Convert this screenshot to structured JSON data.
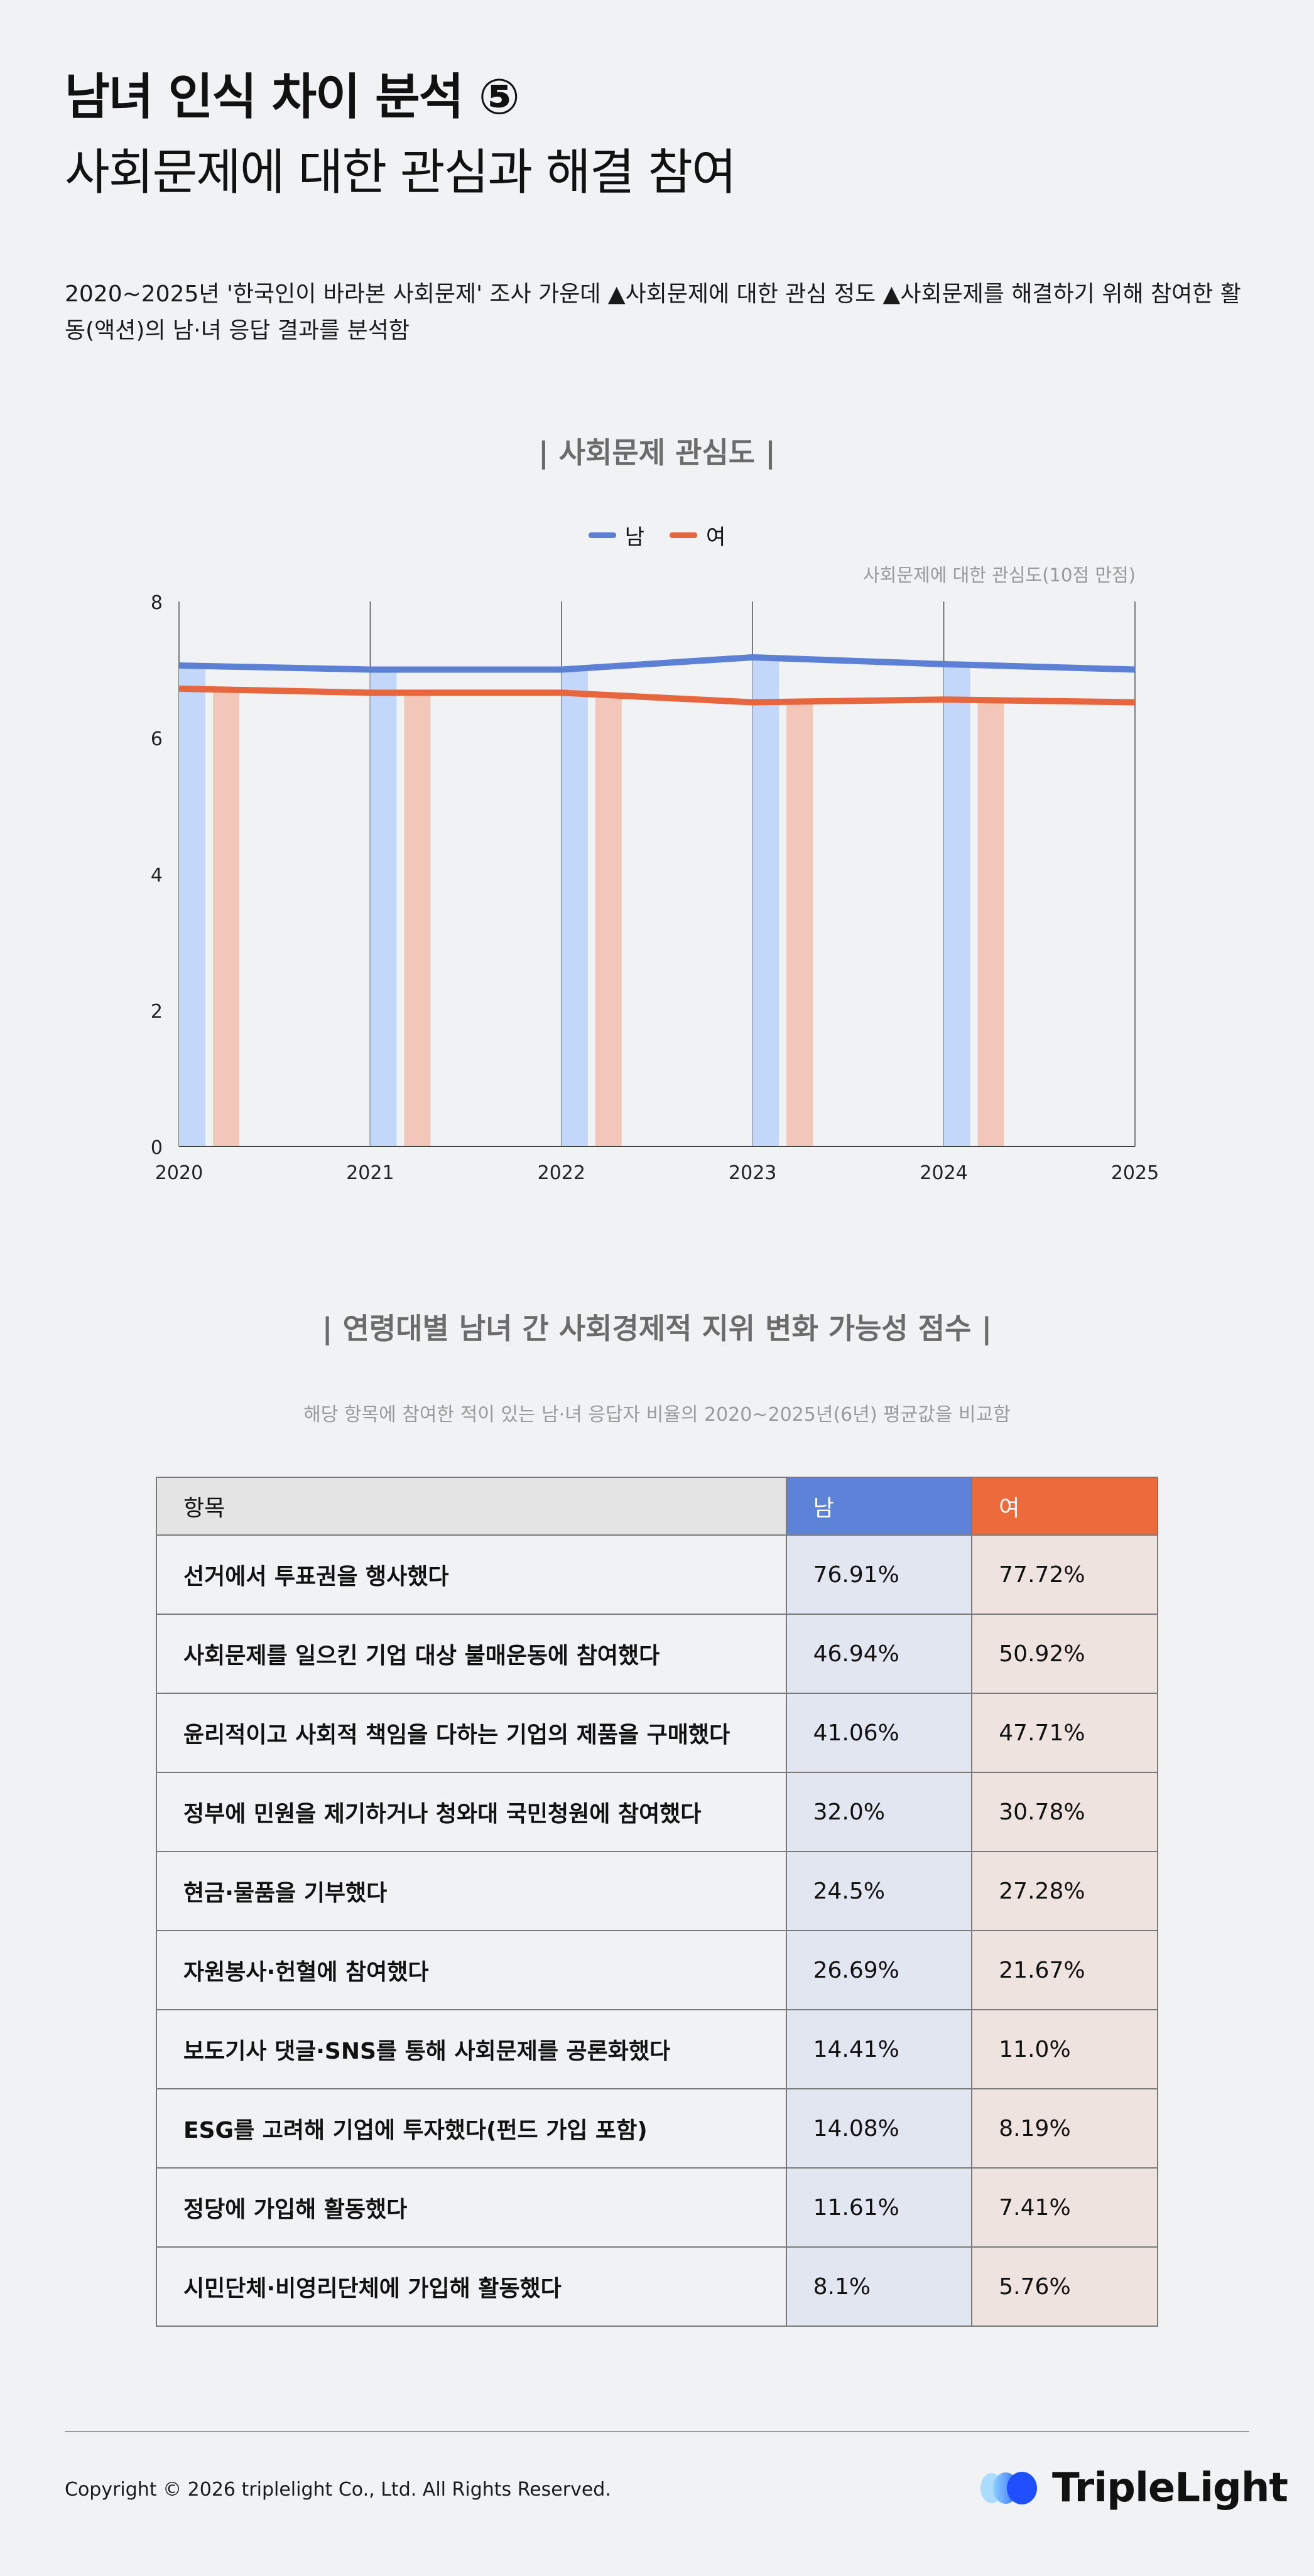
{
  "header": {
    "title_line1": "남녀 인식 차이 분석 ⑤",
    "title_line2": "사회문제에 대한 관심과 해결 참여",
    "description": "2020~2025년 '한국인이 바라본 사회문제' 조사 가운데 ▲사회문제에 대한 관심 정도 ▲사회문제를 해결하기 위해 참여한 활동(액션)의 남·녀 응답 결과를 분석함"
  },
  "chart_section": {
    "title": "| 사회문제 관심도 |",
    "note": "사회문제에 대한 관심도(10점 만점)"
  },
  "chart_data": {
    "type": "bar+line",
    "title": "| 사회문제 관심도 |",
    "categories": [
      "2020",
      "2021",
      "2022",
      "2023",
      "2024"
    ],
    "x_ticks": [
      "2020",
      "2021",
      "2022",
      "2023",
      "2024",
      "2025"
    ],
    "y_ticks": [
      "0",
      "2",
      "4",
      "6",
      "8"
    ],
    "ylim": [
      0,
      8
    ],
    "unit_note": "사회문제에 대한 관심도(10점 만점)",
    "legend_position": "top-center",
    "series": [
      {
        "name": "남",
        "color": "#5b80d6",
        "bar_color": "#c3d7fb",
        "values": [
          7.06,
          7.0,
          7.0,
          7.18,
          7.08
        ],
        "line_values": [
          7.06,
          7.0,
          7.0,
          7.18,
          7.08,
          7.0
        ]
      },
      {
        "name": "여",
        "color": "#e8663e",
        "bar_color": "#f2c6b9",
        "values": [
          6.72,
          6.66,
          6.66,
          6.52,
          6.56
        ],
        "line_values": [
          6.72,
          6.66,
          6.66,
          6.52,
          6.56,
          6.52
        ]
      }
    ]
  },
  "table_section": {
    "title": "| 연령대별 남녀 간 사회경제적 지위 변화 가능성 점수 |",
    "note": "해당 항목에 참여한 적이 있는 남·녀 응답자 비율의 2020~2025년(6년) 평균값을 비교함",
    "headers": {
      "item": "항목",
      "male": "남",
      "female": "여"
    },
    "rows": [
      {
        "item": "선거에서 투표권을 행사했다",
        "male": "76.91%",
        "female": "77.72%"
      },
      {
        "item": "사회문제를 일으킨 기업 대상 불매운동에 참여했다",
        "male": "46.94%",
        "female": "50.92%"
      },
      {
        "item": "윤리적이고 사회적 책임을 다하는 기업의 제품을 구매했다",
        "male": "41.06%",
        "female": "47.71%"
      },
      {
        "item": "정부에 민원을 제기하거나 청와대 국민청원에 참여했다",
        "male": "32.0%",
        "female": "30.78%"
      },
      {
        "item": "현금·물품을 기부했다",
        "male": "24.5%",
        "female": "27.28%"
      },
      {
        "item": "자원봉사·헌혈에 참여했다",
        "male": "26.69%",
        "female": "21.67%"
      },
      {
        "item": "보도기사 댓글·SNS를 통해 사회문제를 공론화했다",
        "male": "14.41%",
        "female": "11.0%"
      },
      {
        "item": "ESG를 고려해 기업에 투자했다(펀드 가입 포함)",
        "male": "14.08%",
        "female": "8.19%"
      },
      {
        "item": "정당에 가입해 활동했다",
        "male": "11.61%",
        "female": "7.41%"
      },
      {
        "item": "시민단체·비영리단체에 가입해 활동했다",
        "male": "8.1%",
        "female": "5.76%"
      }
    ]
  },
  "footer": {
    "copyright": "Copyright © 2026 triplelight Co., Ltd. All Rights Reserved.",
    "logo_text": "TripleLight"
  }
}
